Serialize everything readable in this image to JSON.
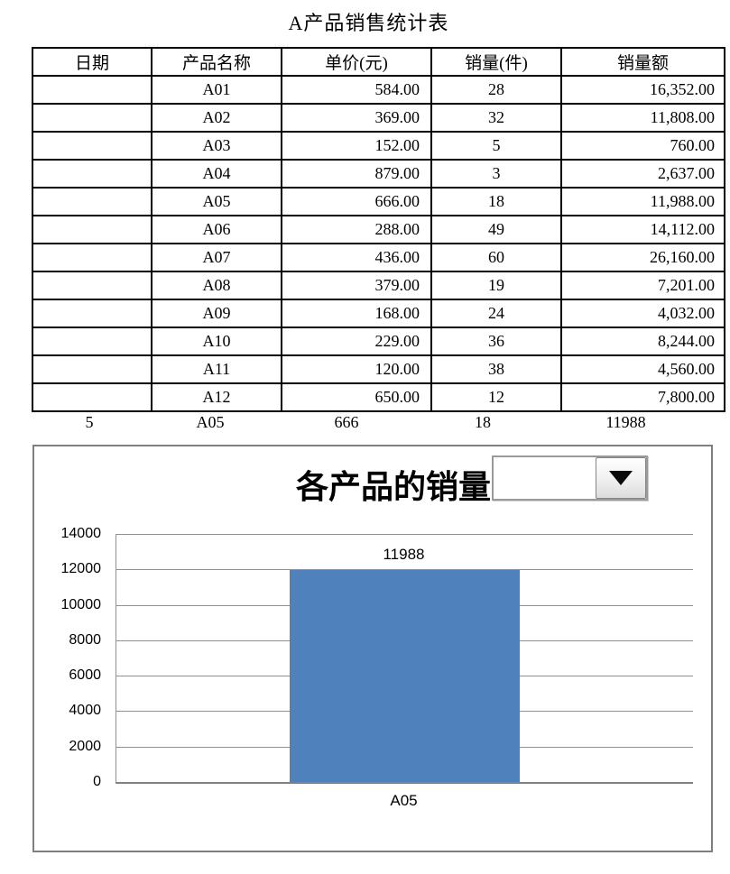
{
  "page": {
    "title": "A产品销售统计表"
  },
  "table": {
    "columns": [
      "日期",
      "产品名称",
      "单价(元)",
      "销量(件)",
      "销量额"
    ],
    "rows": [
      [
        "",
        "A01",
        "584.00",
        "28",
        "16,352.00"
      ],
      [
        "",
        "A02",
        "369.00",
        "32",
        "11,808.00"
      ],
      [
        "",
        "A03",
        "152.00",
        "5",
        "760.00"
      ],
      [
        "",
        "A04",
        "879.00",
        "3",
        "2,637.00"
      ],
      [
        "",
        "A05",
        "666.00",
        "18",
        "11,988.00"
      ],
      [
        "",
        "A06",
        "288.00",
        "49",
        "14,112.00"
      ],
      [
        "",
        "A07",
        "436.00",
        "60",
        "26,160.00"
      ],
      [
        "",
        "A08",
        "379.00",
        "19",
        "7,201.00"
      ],
      [
        "",
        "A09",
        "168.00",
        "24",
        "4,032.00"
      ],
      [
        "",
        "A10",
        "229.00",
        "36",
        "8,244.00"
      ],
      [
        "",
        "A11",
        "120.00",
        "38",
        "4,560.00"
      ],
      [
        "",
        "A12",
        "650.00",
        "12",
        "7,800.00"
      ]
    ]
  },
  "helper_row": {
    "values": [
      "5",
      "A05",
      "666",
      "18",
      "11988"
    ]
  },
  "chart": {
    "title": "各产品的销量",
    "combo_value": ""
  },
  "chart_data": {
    "type": "bar",
    "title": "各产品的销量",
    "categories": [
      "A05"
    ],
    "values": [
      11988
    ],
    "data_labels": [
      "11988"
    ],
    "xlabel": "",
    "ylabel": "",
    "ylim": [
      0,
      14000
    ],
    "yticks": [
      0,
      2000,
      4000,
      6000,
      8000,
      10000,
      12000,
      14000
    ],
    "grid": "horizontal",
    "legend": "none",
    "bar_color": "#4f81bd",
    "gridline_color": "#909090",
    "axis_color": "#808080"
  }
}
